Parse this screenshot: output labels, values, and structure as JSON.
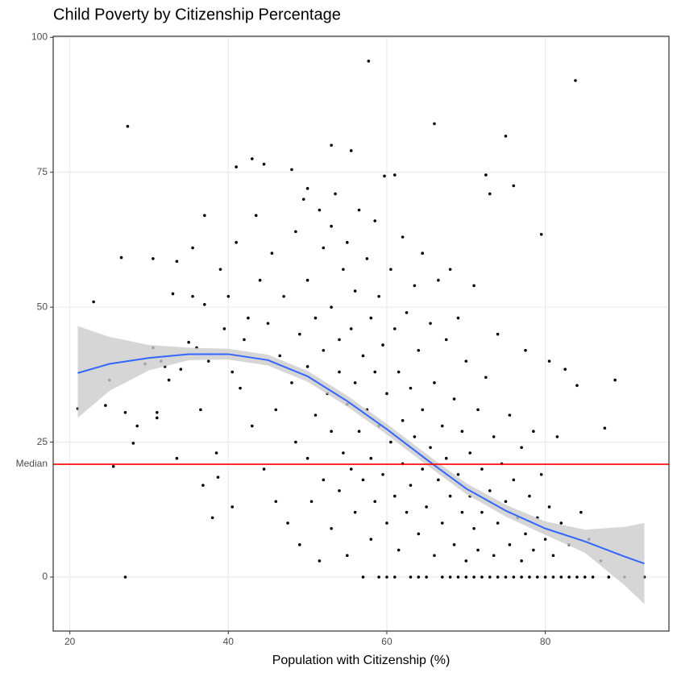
{
  "chart_data": {
    "type": "scatter",
    "title": "Child Poverty by Citizenship Percentage",
    "x_label": "Population with Citizenship (%)",
    "xlim": [
      17.9,
      95.6
    ],
    "ylim": [
      -10,
      100.2
    ],
    "xticks": [
      20,
      40,
      60,
      80
    ],
    "yticks": [
      0,
      25,
      50,
      75,
      100
    ],
    "grid": true,
    "point_color": "#000000",
    "x": [
      21,
      23,
      24.5,
      25,
      25.5,
      26.5,
      27.3,
      27,
      27,
      28,
      28.5,
      29.5,
      30.5,
      30.5,
      31,
      31,
      31.5,
      32,
      32.5,
      33,
      33.5,
      33.5,
      34,
      35,
      35.5,
      35.5,
      36,
      36.5,
      36.8,
      37,
      37,
      37.5,
      38,
      38.5,
      38.7,
      39,
      39.5,
      40,
      40.5,
      40.5,
      41,
      41,
      41.5,
      42,
      42.5,
      43,
      43,
      43.5,
      44,
      44.5,
      44.5,
      45,
      45.5,
      46,
      46,
      46.5,
      47,
      47.5,
      48,
      48,
      48.5,
      48.5,
      49,
      49,
      49.5,
      50,
      50,
      50,
      50,
      50.5,
      51,
      51,
      51.5,
      51.5,
      52,
      52,
      52,
      52.5,
      53,
      53,
      53,
      53,
      53,
      53.5,
      54,
      54,
      54,
      54.5,
      54.5,
      55,
      55,
      55,
      55.5,
      55.5,
      55.5,
      56,
      56,
      56,
      56.5,
      56.5,
      57,
      57,
      57,
      57.7,
      57.5,
      57.5,
      58,
      58,
      58,
      58.5,
      58.5,
      58.5,
      59,
      59,
      59,
      59.7,
      59.5,
      59.5,
      60,
      60,
      60,
      60.5,
      60.5,
      61,
      61,
      61,
      61,
      61.5,
      61.5,
      62,
      62,
      62,
      62.5,
      62.5,
      63,
      63,
      63,
      63.5,
      63.5,
      64,
      64,
      64,
      64.5,
      64.5,
      64.5,
      65,
      65,
      65.5,
      65.5,
      66,
      66,
      66,
      66.5,
      66.5,
      67,
      67,
      67,
      67.5,
      67.5,
      68,
      68,
      68,
      68.5,
      68.5,
      69,
      69,
      69,
      69.5,
      69.5,
      70,
      70,
      70,
      70.5,
      70.5,
      71,
      71,
      71,
      71.5,
      71.5,
      72,
      72,
      72,
      72.5,
      72.5,
      73,
      73,
      73,
      73.5,
      73.5,
      74,
      74,
      74,
      74.5,
      75,
      75,
      75,
      75.5,
      75.5,
      76,
      76,
      76,
      76.5,
      77,
      77,
      77,
      77.5,
      77.5,
      78,
      78,
      78.5,
      78.5,
      79,
      79,
      79.5,
      79.5,
      80,
      80,
      80.5,
      80.5,
      81,
      81,
      81.5,
      82,
      82,
      82.5,
      83,
      83,
      83.8,
      84,
      84,
      84.5,
      85,
      85.5,
      86,
      87.5,
      87,
      88,
      88.8,
      90,
      92.5
    ],
    "y": [
      31.2,
      51,
      31.8,
      36.5,
      20.5,
      59.2,
      83.5,
      30.5,
      0,
      24.8,
      28,
      39.5,
      59,
      42.5,
      30.5,
      29.5,
      40,
      39,
      36.5,
      52.5,
      58.5,
      22,
      38.5,
      43.5,
      61,
      52,
      42.5,
      31,
      17,
      67,
      50.5,
      40,
      11,
      23,
      18.5,
      57,
      46,
      52,
      13,
      38,
      76,
      62,
      35,
      44,
      48,
      77.5,
      28,
      67,
      55,
      76.5,
      20,
      47,
      60,
      31,
      14,
      41,
      52,
      10,
      75.5,
      36,
      64,
      25,
      45,
      6,
      70,
      72,
      55,
      39,
      22,
      14,
      48,
      30,
      68,
      3,
      61,
      42,
      18,
      34,
      80,
      65,
      50,
      27,
      9,
      71,
      44,
      38,
      16,
      57,
      23,
      62,
      32,
      4,
      79,
      46,
      20,
      53,
      36,
      12,
      68,
      27,
      0,
      41,
      18,
      95.6,
      59,
      31,
      48,
      22,
      7,
      66,
      38,
      14,
      0,
      52,
      28,
      74.3,
      43,
      19,
      34,
      10,
      0,
      57,
      25,
      74.5,
      46,
      15,
      0,
      38,
      5,
      63,
      29,
      21,
      49,
      12,
      0,
      35,
      17,
      54,
      26,
      42,
      8,
      0,
      60,
      31,
      20,
      13,
      0,
      47,
      24,
      84,
      36,
      4,
      55,
      18,
      0,
      28,
      10,
      44,
      22,
      57,
      15,
      0,
      33,
      6,
      48,
      19,
      0,
      27,
      12,
      40,
      3,
      0,
      23,
      15,
      54,
      9,
      0,
      31,
      5,
      0,
      20,
      12,
      74.5,
      37,
      71,
      0,
      16,
      26,
      4,
      0,
      45,
      10,
      21,
      81.7,
      0,
      14,
      30,
      6,
      72.5,
      0,
      18,
      11,
      0,
      24,
      3,
      42,
      8,
      0,
      15,
      27,
      5,
      0,
      11,
      63.5,
      19,
      0,
      7,
      40,
      13,
      0,
      4,
      26,
      0,
      10,
      38.5,
      0,
      6,
      92,
      35.5,
      0,
      12,
      0,
      7,
      0,
      27.6,
      3,
      0,
      36.5,
      0,
      0
    ],
    "smooth": {
      "color": "#3366ff",
      "band_color": "#cccccc",
      "x": [
        21,
        25,
        30,
        35,
        40,
        45,
        50,
        55,
        60,
        65,
        70,
        75,
        80,
        85,
        90,
        92.5
      ],
      "y": [
        37.8,
        39.5,
        40.6,
        41.3,
        41.3,
        40.2,
        37.2,
        32.6,
        27.4,
        21.8,
        16.4,
        12.3,
        9,
        6.6,
        3.8,
        2.5
      ],
      "lower": [
        29.5,
        34.5,
        38.3,
        40.2,
        40.3,
        39.2,
        36.2,
        31.6,
        26.4,
        20.8,
        15.4,
        11.2,
        7.8,
        4.5,
        -1.5,
        -5
      ],
      "upper": [
        46.5,
        44.5,
        43,
        42.5,
        42.3,
        41.2,
        38.2,
        33.6,
        28.4,
        22.8,
        17.4,
        13.4,
        10.3,
        8.8,
        9.3,
        10
      ]
    },
    "hline": {
      "value": 20.9,
      "label": "Median",
      "color": "#ff0000"
    }
  }
}
